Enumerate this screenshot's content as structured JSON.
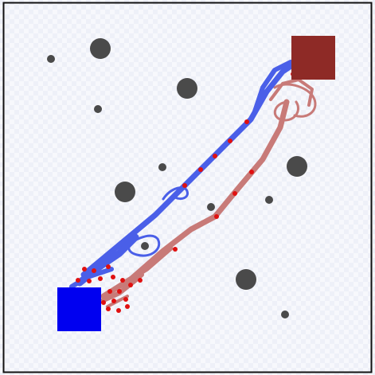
{
  "colors": {
    "background": "#f4f5fb",
    "border": "#111111",
    "obstacle": "#4a4a4a",
    "start_region": "#0000f0",
    "goal_region": "#8e2a26",
    "blue_tree": "#4a5fe8",
    "red_tree": "#c87a78",
    "sample_point": "#e01010"
  },
  "icons": {
    "obstacle": "obstacle-circle",
    "start": "start-square",
    "goal": "goal-square",
    "sample": "sample-dot"
  }
}
